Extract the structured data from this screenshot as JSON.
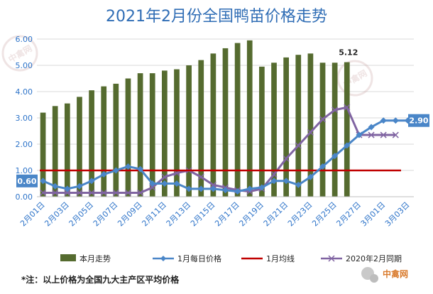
{
  "chart_data": {
    "type": "bar",
    "title": "2021年2月份全国鸭苗价格走势",
    "ylim": [
      0,
      6
    ],
    "yticks": [
      "0.00",
      "1.00",
      "2.00",
      "3.00",
      "4.00",
      "5.00",
      "6.00"
    ],
    "categories": [
      "2月01日",
      "2月02日",
      "2月03日",
      "2月04日",
      "2月05日",
      "2月06日",
      "2月07日",
      "2月08日",
      "2月09日",
      "2月10日",
      "2月11日",
      "2月12日",
      "2月13日",
      "2月14日",
      "2月15日",
      "2月16日",
      "2月17日",
      "2月18日",
      "2月19日",
      "2月20日",
      "2月21日",
      "2月22日",
      "2月23日",
      "2月24日",
      "2月25日",
      "2月26日",
      "2月27日",
      "2月28日",
      "3月01日",
      "3月02日",
      "3月03日"
    ],
    "x_tick_labels": [
      "2月01日",
      "2月03日",
      "2月05日",
      "2月07日",
      "2月09日",
      "2月11日",
      "2月13日",
      "2月15日",
      "2月17日",
      "2月19日",
      "2月21日",
      "2月23日",
      "2月25日",
      "2月27日",
      "3月01日",
      "3月03日"
    ],
    "series": [
      {
        "name": "本月走势",
        "type": "bar",
        "color": "#556b2f",
        "values": [
          3.2,
          3.45,
          3.55,
          3.8,
          4.05,
          4.2,
          4.3,
          4.5,
          4.7,
          4.7,
          4.8,
          4.85,
          5.0,
          5.2,
          5.45,
          5.65,
          5.85,
          5.95,
          4.95,
          5.1,
          5.3,
          5.4,
          5.45,
          5.1,
          5.1,
          5.12,
          null,
          null,
          null,
          null,
          null
        ]
      },
      {
        "name": "1月每日价格",
        "type": "line",
        "color": "#4a86c8",
        "marker": "diamond",
        "values": [
          0.6,
          0.4,
          0.3,
          0.4,
          0.6,
          0.85,
          1.0,
          1.15,
          1.05,
          0.5,
          0.5,
          0.5,
          0.3,
          0.3,
          0.3,
          0.25,
          0.2,
          0.3,
          0.35,
          0.6,
          0.6,
          0.45,
          0.75,
          1.15,
          1.55,
          1.95,
          2.35,
          2.65,
          2.9,
          2.9,
          2.9
        ]
      },
      {
        "name": "1月均线",
        "type": "line",
        "color": "#c00000",
        "values": [
          1.0,
          1.0,
          1.0,
          1.0,
          1.0,
          1.0,
          1.0,
          1.0,
          1.0,
          1.0,
          1.0,
          1.0,
          1.0,
          1.0,
          1.0,
          1.0,
          1.0,
          1.0,
          1.0,
          1.0,
          1.0,
          1.0,
          1.0,
          1.0,
          1.0,
          1.0,
          1.0,
          1.0,
          1.0,
          1.0,
          1.0
        ]
      },
      {
        "name": "2020年2月同期",
        "type": "line",
        "color": "#8064a2",
        "marker": "x",
        "values": [
          0.15,
          0.15,
          0.15,
          0.15,
          0.15,
          0.15,
          0.15,
          0.15,
          0.15,
          0.35,
          0.75,
          0.9,
          1.0,
          0.75,
          0.45,
          0.35,
          0.25,
          0.2,
          0.3,
          0.85,
          1.45,
          1.95,
          2.45,
          2.95,
          3.3,
          3.4,
          2.35,
          2.35,
          2.35,
          2.35,
          null
        ]
      }
    ],
    "data_labels": {
      "bar_last": "5.12",
      "blue_first": "0.60",
      "blue_last": "2.90"
    },
    "legend_position": "bottom",
    "grid": "horizontal"
  },
  "legend": {
    "items": [
      {
        "label": "本月走势",
        "color": "#556b2f",
        "kind": "bar"
      },
      {
        "label": "1月每日价格",
        "color": "#4a86c8",
        "kind": "diamond-line"
      },
      {
        "label": "1月均线",
        "color": "#c00000",
        "kind": "line"
      },
      {
        "label": "2020年2月同期",
        "color": "#8064a2",
        "kind": "x-line"
      }
    ]
  },
  "footnote": "*注：以上价格为全国九大主产区平均价格",
  "brand": {
    "name": "中禽网",
    "icon": "wechat-icon"
  },
  "watermark": {
    "text": "中禽网"
  }
}
